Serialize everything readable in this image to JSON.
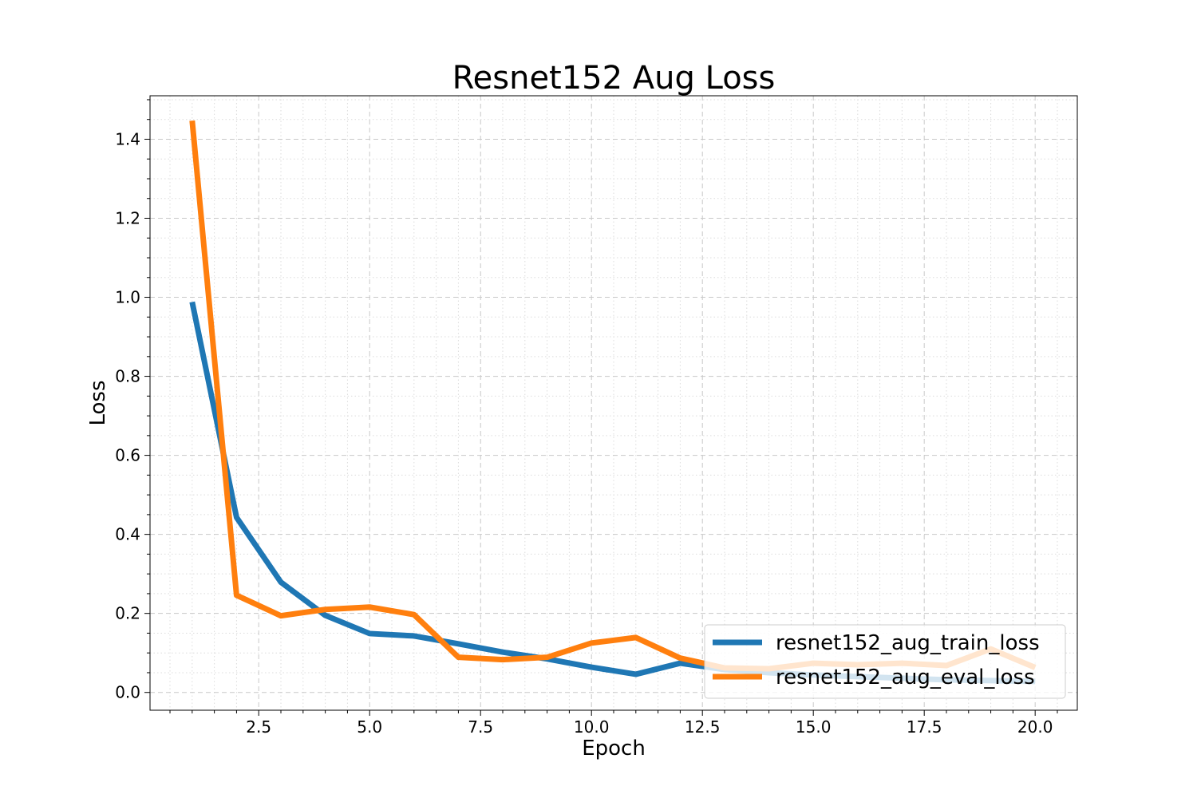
{
  "chart_data": {
    "type": "line",
    "title": "Resnet152 Aug Loss",
    "xlabel": "Epoch",
    "ylabel": "Loss",
    "xlim": [
      0.05,
      20.95
    ],
    "ylim": [
      -0.045,
      1.51
    ],
    "grid": true,
    "legend_position": "lower-right",
    "x": [
      1,
      2,
      3,
      4,
      5,
      6,
      7,
      8,
      9,
      10,
      11,
      12,
      13,
      14,
      15,
      16,
      17,
      18,
      19,
      20
    ],
    "x_ticks": [
      2.5,
      5.0,
      7.5,
      10.0,
      12.5,
      15.0,
      17.5,
      20.0
    ],
    "x_tick_labels": [
      "2.5",
      "5.0",
      "7.5",
      "10.0",
      "12.5",
      "15.0",
      "17.5",
      "20.0"
    ],
    "y_ticks": [
      0.0,
      0.2,
      0.4,
      0.6,
      0.8,
      1.0,
      1.2,
      1.4
    ],
    "y_tick_labels": [
      "0.0",
      "0.2",
      "0.4",
      "0.6",
      "0.8",
      "1.0",
      "1.2",
      "1.4"
    ],
    "series": [
      {
        "name": "resnet152_aug_train_loss",
        "color": "#1f77b4",
        "values": [
          0.988,
          0.443,
          0.279,
          0.195,
          0.149,
          0.143,
          0.123,
          0.102,
          0.085,
          0.064,
          0.046,
          0.074,
          0.058,
          0.05,
          0.044,
          0.04,
          0.036,
          0.032,
          0.03,
          0.028
        ]
      },
      {
        "name": "resnet152_aug_eval_loss",
        "color": "#ff7f0e",
        "values": [
          1.447,
          0.246,
          0.194,
          0.21,
          0.216,
          0.197,
          0.089,
          0.083,
          0.089,
          0.125,
          0.139,
          0.087,
          0.062,
          0.06,
          0.074,
          0.07,
          0.074,
          0.068,
          0.11,
          0.063
        ]
      }
    ]
  }
}
